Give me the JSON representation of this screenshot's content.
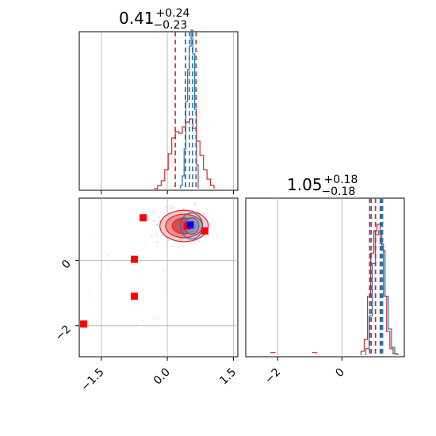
{
  "chart_data": [
    {
      "type": "histogram",
      "panel": "param-0-marginal",
      "title": {
        "value": "0.41",
        "plus": "+0.24",
        "minus": "−0.23"
      },
      "xlim": [
        -2.0,
        1.6
      ],
      "grid": true,
      "quantile_lines": {
        "red": [
          0.18,
          0.41,
          0.65
        ],
        "blue": [
          0.41,
          0.5,
          0.57
        ]
      },
      "hist_red": {
        "edges": [
          -0.3,
          -0.22,
          -0.14,
          -0.06,
          0.02,
          0.1,
          0.18,
          0.26,
          0.34,
          0.42,
          0.5,
          0.58,
          0.66,
          0.74,
          0.82,
          0.9,
          0.98,
          1.06
        ],
        "counts": [
          0.0,
          0.02,
          0.05,
          0.12,
          0.22,
          0.32,
          0.36,
          0.35,
          0.39,
          0.42,
          0.44,
          0.38,
          0.3,
          0.21,
          0.12,
          0.06,
          0.02
        ]
      },
      "hist_blue": {
        "edges": [
          0.3,
          0.34,
          0.38,
          0.42,
          0.46,
          0.5,
          0.54,
          0.58,
          0.62,
          0.66,
          0.7
        ],
        "counts": [
          0.02,
          0.08,
          0.25,
          0.55,
          0.75,
          0.9,
          1.0,
          0.85,
          0.5,
          0.15
        ]
      }
    },
    {
      "type": "histogram",
      "panel": "param-1-marginal",
      "title": {
        "value": "1.05",
        "plus": "+0.18",
        "minus": "−0.18"
      },
      "xlim": [
        -3.0,
        1.95
      ],
      "xticks": [
        -2,
        0
      ],
      "xticklabels": [
        "−2",
        "0"
      ],
      "grid": true,
      "quantile_lines": {
        "red": [
          0.87,
          1.05,
          1.23
        ],
        "blue": [
          0.92,
          1.2,
          1.27
        ]
      },
      "hist_red": {
        "edges": [
          0.6,
          0.7,
          0.8,
          0.9,
          1.0,
          1.1,
          1.2,
          1.3,
          1.4,
          1.5,
          1.6,
          1.7
        ],
        "counts": [
          0.03,
          0.12,
          0.45,
          0.78,
          0.95,
          1.0,
          0.85,
          0.45,
          0.18,
          0.05,
          0.01
        ]
      },
      "hist_blue": {
        "edges": [
          0.75,
          0.85,
          0.95,
          1.05,
          1.15,
          1.25,
          1.35,
          1.45,
          1.55,
          1.65,
          1.75
        ],
        "counts": [
          0.05,
          0.3,
          0.7,
          0.92,
          0.95,
          0.8,
          0.45,
          0.2,
          0.06,
          0.01
        ]
      },
      "outlier_counts": [
        {
          "x": -2.15,
          "count": 0.02
        },
        {
          "x": -0.85,
          "count": 0.02
        }
      ]
    },
    {
      "type": "scatter",
      "panel": "joint-density",
      "xlim": [
        -2.0,
        1.6
      ],
      "ylim": [
        -2.95,
        1.9
      ],
      "xticks": [
        -1.5,
        0.0,
        1.5
      ],
      "xticklabels": [
        "−1.5",
        "0.0",
        "1.5"
      ],
      "yticks": [
        0,
        -2
      ],
      "yticklabels": [
        "0",
        "−2"
      ],
      "grid": true,
      "red_contours": [
        {
          "cx": 0.38,
          "cy": 1.05,
          "rx": 0.55,
          "ry": 0.48
        },
        {
          "cx": 0.38,
          "cy": 1.05,
          "rx": 0.42,
          "ry": 0.36
        },
        {
          "cx": 0.38,
          "cy": 1.05,
          "rx": 0.27,
          "ry": 0.24
        }
      ],
      "blue_contours": [
        {
          "cx": 0.55,
          "cy": 1.05,
          "rx": 0.25,
          "ry": 0.4
        },
        {
          "cx": 0.55,
          "cy": 1.05,
          "rx": 0.16,
          "ry": 0.25
        }
      ],
      "red_markers": [
        {
          "x": -0.55,
          "y": 1.3
        },
        {
          "x": -0.75,
          "y": 0.03
        },
        {
          "x": -0.75,
          "y": -1.1
        },
        {
          "x": -1.9,
          "y": -1.95
        },
        {
          "x": 0.85,
          "y": 0.9
        },
        {
          "x": 0.45,
          "y": 1.05
        }
      ],
      "blue_markers": [
        {
          "x": 0.52,
          "y": 1.08
        }
      ]
    }
  ],
  "colors": {
    "red": "#d62728",
    "blue": "#1f77b4",
    "red_marker": "#ff0000",
    "blue_marker": "#0000ff",
    "grid": "#b0b0b0",
    "axes": "#000000"
  }
}
